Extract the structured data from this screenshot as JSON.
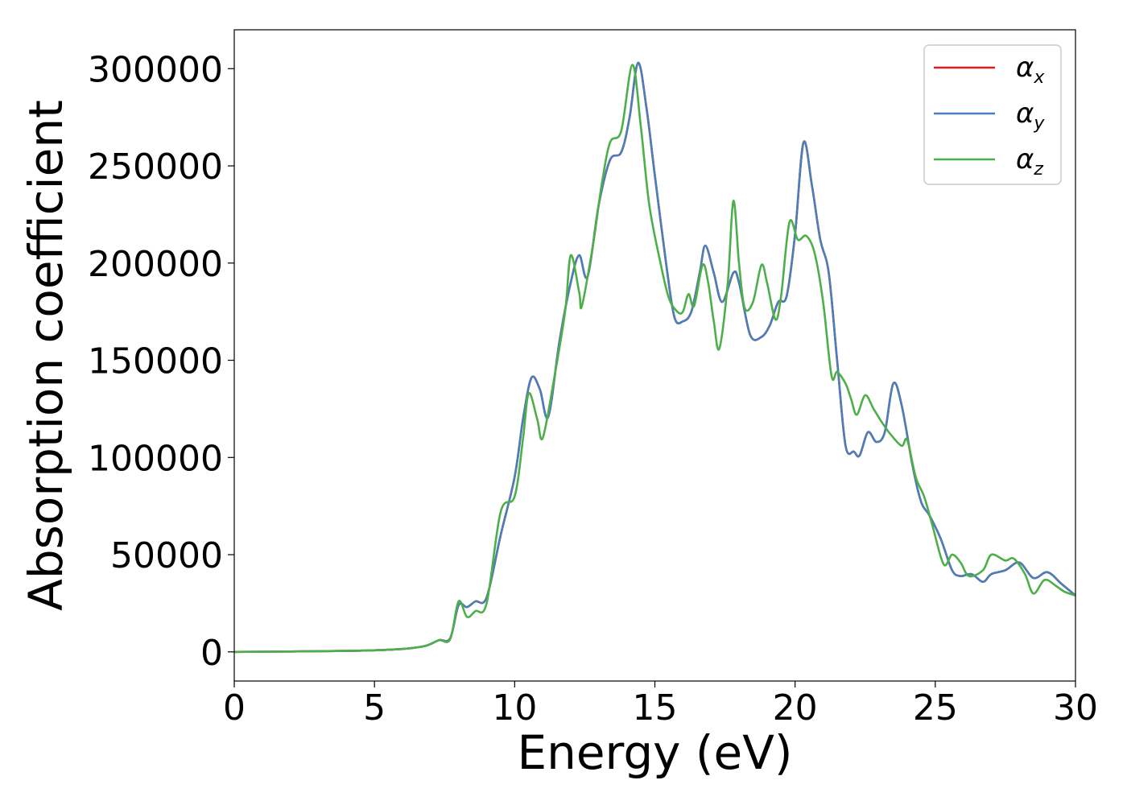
{
  "chart_data": {
    "type": "line",
    "title": "",
    "xlabel": "Energy (eV)",
    "ylabel": "Absorption coefficient",
    "xlim": [
      0,
      30
    ],
    "ylim": [
      -15000,
      320000
    ],
    "xticks": [
      0,
      5,
      10,
      15,
      20,
      25,
      30
    ],
    "yticks": [
      0,
      50000,
      100000,
      150000,
      200000,
      250000,
      300000
    ],
    "xtick_labels": [
      "0",
      "5",
      "10",
      "15",
      "20",
      "25",
      "30"
    ],
    "ytick_labels": [
      "0",
      "50000",
      "100000",
      "150000",
      "200000",
      "250000",
      "300000"
    ],
    "grid": false,
    "legend_position": "top-right",
    "series": [
      {
        "name": "α",
        "sub": "x",
        "color": "#e41a1c",
        "points": [
          [
            0,
            0
          ],
          [
            2,
            200
          ],
          [
            4,
            500
          ],
          [
            5,
            800
          ],
          [
            6,
            1500
          ],
          [
            6.8,
            3000
          ],
          [
            7.3,
            6000
          ],
          [
            7.7,
            7000
          ],
          [
            8.0,
            24000
          ],
          [
            8.3,
            23000
          ],
          [
            8.6,
            26000
          ],
          [
            9.0,
            28000
          ],
          [
            9.5,
            60000
          ],
          [
            10.0,
            90000
          ],
          [
            10.3,
            120000
          ],
          [
            10.6,
            141000
          ],
          [
            10.9,
            135000
          ],
          [
            11.2,
            121000
          ],
          [
            11.6,
            160000
          ],
          [
            12.0,
            190000
          ],
          [
            12.3,
            204000
          ],
          [
            12.6,
            193000
          ],
          [
            13.0,
            230000
          ],
          [
            13.4,
            253000
          ],
          [
            13.8,
            257000
          ],
          [
            14.1,
            275000
          ],
          [
            14.4,
            303000
          ],
          [
            14.7,
            280000
          ],
          [
            15.0,
            245000
          ],
          [
            15.4,
            200000
          ],
          [
            15.7,
            172000
          ],
          [
            16.0,
            170000
          ],
          [
            16.3,
            175000
          ],
          [
            16.6,
            195000
          ],
          [
            16.8,
            209000
          ],
          [
            17.1,
            195000
          ],
          [
            17.4,
            180000
          ],
          [
            17.8,
            195000
          ],
          [
            18.0,
            190000
          ],
          [
            18.4,
            163000
          ],
          [
            18.8,
            162000
          ],
          [
            19.1,
            168000
          ],
          [
            19.4,
            180000
          ],
          [
            19.7,
            183000
          ],
          [
            20.0,
            215000
          ],
          [
            20.3,
            262000
          ],
          [
            20.6,
            240000
          ],
          [
            20.9,
            212000
          ],
          [
            21.2,
            195000
          ],
          [
            21.5,
            150000
          ],
          [
            21.8,
            106000
          ],
          [
            22.1,
            103000
          ],
          [
            22.3,
            101000
          ],
          [
            22.6,
            113000
          ],
          [
            22.9,
            108000
          ],
          [
            23.2,
            113000
          ],
          [
            23.5,
            138000
          ],
          [
            23.8,
            127000
          ],
          [
            24.2,
            95000
          ],
          [
            24.5,
            77000
          ],
          [
            24.8,
            70000
          ],
          [
            25.2,
            58000
          ],
          [
            25.6,
            42000
          ],
          [
            25.9,
            39000
          ],
          [
            26.3,
            40000
          ],
          [
            26.7,
            36000
          ],
          [
            27.0,
            40000
          ],
          [
            27.5,
            42000
          ],
          [
            28.0,
            46000
          ],
          [
            28.5,
            38000
          ],
          [
            29.0,
            41000
          ],
          [
            29.5,
            35000
          ],
          [
            30,
            29000
          ]
        ]
      },
      {
        "name": "α",
        "sub": "y",
        "color": "#4a7fb7",
        "points": [
          [
            0,
            0
          ],
          [
            2,
            200
          ],
          [
            4,
            500
          ],
          [
            5,
            800
          ],
          [
            6,
            1500
          ],
          [
            6.8,
            3000
          ],
          [
            7.3,
            6000
          ],
          [
            7.7,
            7000
          ],
          [
            8.0,
            24000
          ],
          [
            8.3,
            23000
          ],
          [
            8.6,
            26000
          ],
          [
            9.0,
            28000
          ],
          [
            9.5,
            60000
          ],
          [
            10.0,
            90000
          ],
          [
            10.3,
            120000
          ],
          [
            10.6,
            141000
          ],
          [
            10.9,
            135000
          ],
          [
            11.2,
            121000
          ],
          [
            11.6,
            160000
          ],
          [
            12.0,
            190000
          ],
          [
            12.3,
            204000
          ],
          [
            12.6,
            193000
          ],
          [
            13.0,
            230000
          ],
          [
            13.4,
            253000
          ],
          [
            13.8,
            257000
          ],
          [
            14.1,
            275000
          ],
          [
            14.4,
            303000
          ],
          [
            14.7,
            280000
          ],
          [
            15.0,
            245000
          ],
          [
            15.4,
            200000
          ],
          [
            15.7,
            172000
          ],
          [
            16.0,
            170000
          ],
          [
            16.3,
            175000
          ],
          [
            16.6,
            195000
          ],
          [
            16.8,
            209000
          ],
          [
            17.1,
            195000
          ],
          [
            17.4,
            180000
          ],
          [
            17.8,
            195000
          ],
          [
            18.0,
            190000
          ],
          [
            18.4,
            163000
          ],
          [
            18.8,
            162000
          ],
          [
            19.1,
            168000
          ],
          [
            19.4,
            180000
          ],
          [
            19.7,
            183000
          ],
          [
            20.0,
            215000
          ],
          [
            20.3,
            262000
          ],
          [
            20.6,
            240000
          ],
          [
            20.9,
            212000
          ],
          [
            21.2,
            195000
          ],
          [
            21.5,
            150000
          ],
          [
            21.8,
            106000
          ],
          [
            22.1,
            103000
          ],
          [
            22.3,
            101000
          ],
          [
            22.6,
            113000
          ],
          [
            22.9,
            108000
          ],
          [
            23.2,
            113000
          ],
          [
            23.5,
            138000
          ],
          [
            23.8,
            127000
          ],
          [
            24.2,
            95000
          ],
          [
            24.5,
            77000
          ],
          [
            24.8,
            70000
          ],
          [
            25.2,
            58000
          ],
          [
            25.6,
            42000
          ],
          [
            25.9,
            39000
          ],
          [
            26.3,
            40000
          ],
          [
            26.7,
            36000
          ],
          [
            27.0,
            40000
          ],
          [
            27.5,
            42000
          ],
          [
            28.0,
            46000
          ],
          [
            28.5,
            38000
          ],
          [
            29.0,
            41000
          ],
          [
            29.5,
            35000
          ],
          [
            30,
            29000
          ]
        ]
      },
      {
        "name": "α",
        "sub": "z",
        "color": "#4daf4a",
        "points": [
          [
            0,
            0
          ],
          [
            2,
            200
          ],
          [
            4,
            500
          ],
          [
            5,
            800
          ],
          [
            6,
            1500
          ],
          [
            6.8,
            3000
          ],
          [
            7.3,
            6000
          ],
          [
            7.7,
            6500
          ],
          [
            8.0,
            26000
          ],
          [
            8.3,
            18000
          ],
          [
            8.6,
            21000
          ],
          [
            9.0,
            25000
          ],
          [
            9.5,
            72000
          ],
          [
            10.0,
            80000
          ],
          [
            10.3,
            110000
          ],
          [
            10.5,
            133000
          ],
          [
            10.8,
            120000
          ],
          [
            11.0,
            110000
          ],
          [
            11.4,
            140000
          ],
          [
            11.8,
            175000
          ],
          [
            12.0,
            204000
          ],
          [
            12.3,
            185000
          ],
          [
            12.4,
            178000
          ],
          [
            12.8,
            210000
          ],
          [
            13.1,
            240000
          ],
          [
            13.4,
            262000
          ],
          [
            13.8,
            268000
          ],
          [
            14.2,
            302000
          ],
          [
            14.5,
            270000
          ],
          [
            14.8,
            230000
          ],
          [
            15.2,
            200000
          ],
          [
            15.5,
            182000
          ],
          [
            15.8,
            175000
          ],
          [
            16.0,
            175000
          ],
          [
            16.2,
            184000
          ],
          [
            16.4,
            178000
          ],
          [
            16.7,
            199000
          ],
          [
            16.9,
            190000
          ],
          [
            17.1,
            170000
          ],
          [
            17.3,
            156000
          ],
          [
            17.6,
            190000
          ],
          [
            17.8,
            232000
          ],
          [
            18.0,
            200000
          ],
          [
            18.2,
            177000
          ],
          [
            18.5,
            180000
          ],
          [
            18.8,
            199000
          ],
          [
            19.0,
            190000
          ],
          [
            19.3,
            171000
          ],
          [
            19.5,
            183000
          ],
          [
            19.8,
            221000
          ],
          [
            20.1,
            212000
          ],
          [
            20.4,
            214000
          ],
          [
            20.7,
            205000
          ],
          [
            21.0,
            180000
          ],
          [
            21.3,
            142000
          ],
          [
            21.5,
            144000
          ],
          [
            21.8,
            138000
          ],
          [
            22.0,
            130000
          ],
          [
            22.2,
            122000
          ],
          [
            22.5,
            132000
          ],
          [
            22.8,
            125000
          ],
          [
            23.1,
            118000
          ],
          [
            23.4,
            112000
          ],
          [
            23.8,
            106000
          ],
          [
            24.0,
            109000
          ],
          [
            24.3,
            90000
          ],
          [
            24.6,
            80000
          ],
          [
            24.9,
            65000
          ],
          [
            25.3,
            45000
          ],
          [
            25.6,
            50000
          ],
          [
            25.9,
            46000
          ],
          [
            26.2,
            39000
          ],
          [
            26.7,
            42000
          ],
          [
            27.0,
            50000
          ],
          [
            27.5,
            47000
          ],
          [
            27.8,
            48000
          ],
          [
            28.2,
            40000
          ],
          [
            28.5,
            30000
          ],
          [
            28.9,
            37000
          ],
          [
            29.3,
            34000
          ],
          [
            29.6,
            31000
          ],
          [
            30,
            29000
          ]
        ]
      }
    ]
  }
}
